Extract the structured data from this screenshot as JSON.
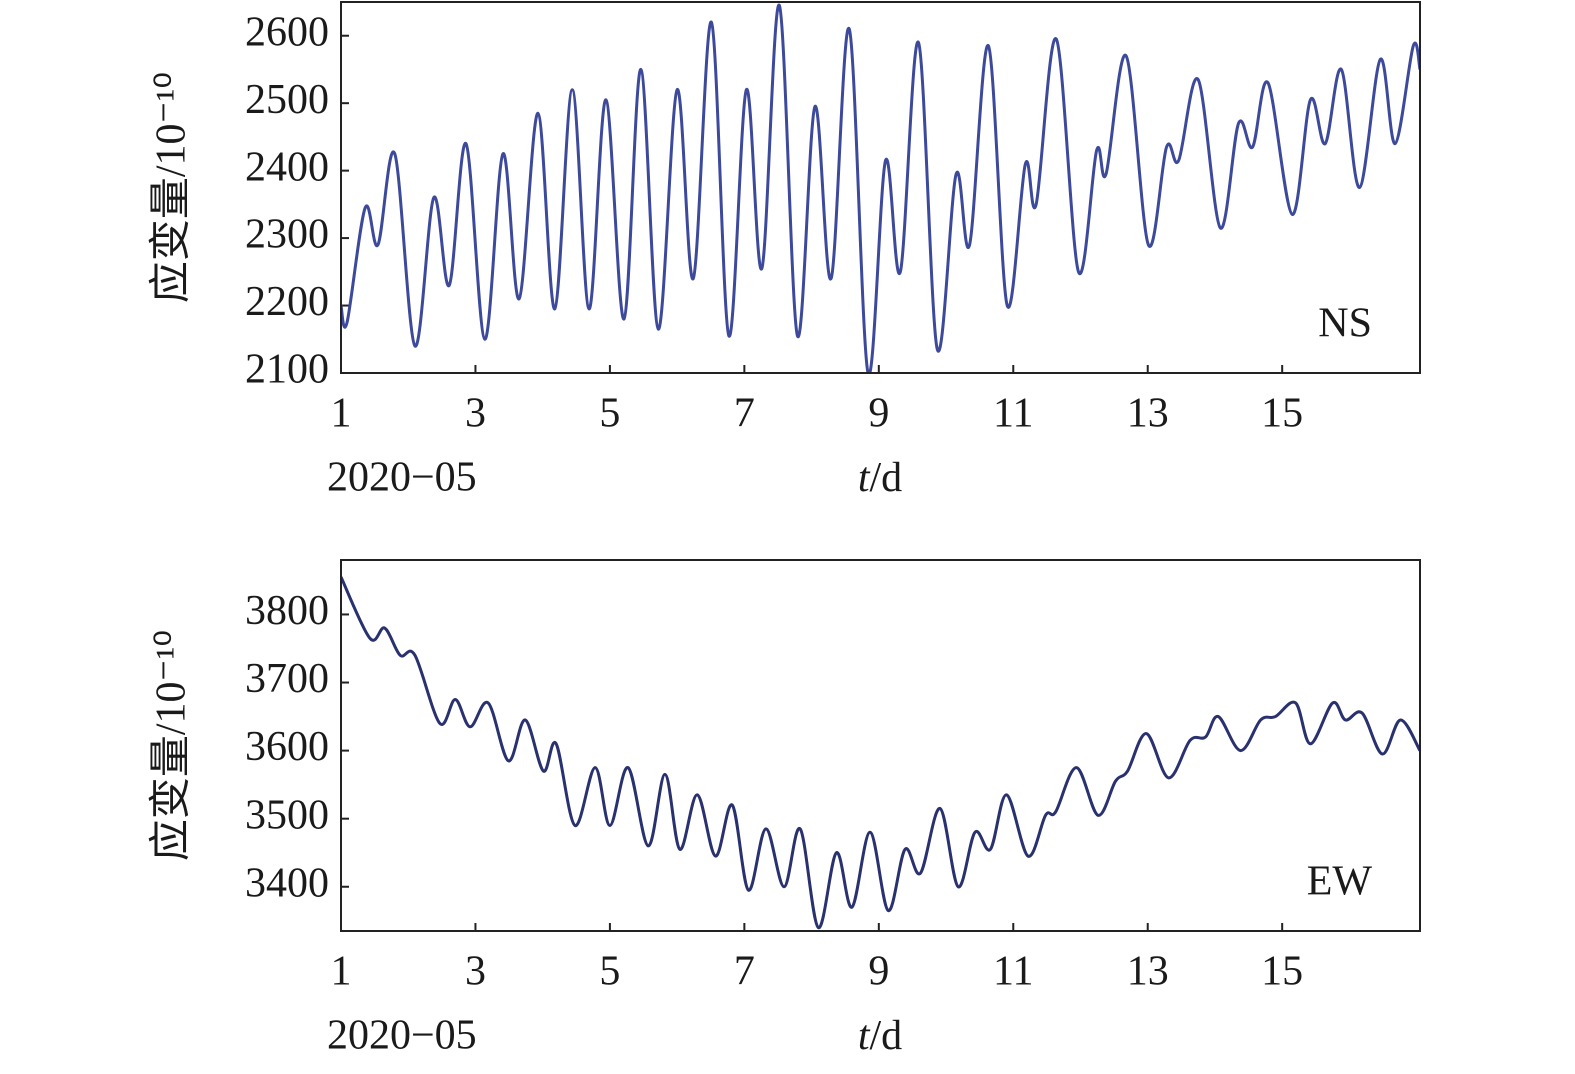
{
  "chart_data": [
    {
      "type": "line",
      "ylabel": "应变量/10⁻¹⁰",
      "xlabel": [
        "t",
        "/d"
      ],
      "date_label": "2020−05",
      "annotation": "NS",
      "xlim": [
        1,
        17.05
      ],
      "xticks": [
        1,
        3,
        5,
        7,
        9,
        11,
        13,
        15
      ],
      "ylim": [
        2100,
        2650
      ],
      "yticks": [
        2100,
        2200,
        2300,
        2400,
        2500,
        2600
      ],
      "x": [
        1.0,
        1.09,
        1.36,
        1.55,
        1.8,
        2.1,
        2.38,
        2.61,
        2.86,
        3.14,
        3.41,
        3.65,
        3.93,
        4.18,
        4.44,
        4.69,
        4.94,
        5.21,
        5.46,
        5.72,
        6.0,
        6.24,
        6.51,
        6.77,
        7.03,
        7.26,
        7.52,
        7.79,
        8.05,
        8.29,
        8.56,
        8.84,
        9.1,
        9.32,
        9.59,
        9.87,
        10.15,
        10.35,
        10.63,
        10.91,
        11.18,
        11.34,
        11.64,
        11.97,
        12.24,
        12.38,
        12.68,
        13.01,
        13.28,
        13.46,
        13.75,
        14.08,
        14.35,
        14.56,
        14.79,
        15.15,
        15.42,
        15.64,
        15.88,
        16.15,
        16.46,
        16.68,
        16.95,
        17.05
      ],
      "series": [
        {
          "color": "#3d4a9c",
          "values": [
            2200,
            2175,
            2345,
            2290,
            2425,
            2140,
            2360,
            2230,
            2440,
            2150,
            2425,
            2210,
            2485,
            2195,
            2520,
            2195,
            2505,
            2180,
            2550,
            2165,
            2520,
            2240,
            2620,
            2155,
            2520,
            2255,
            2645,
            2155,
            2495,
            2240,
            2610,
            2100,
            2415,
            2250,
            2590,
            2135,
            2395,
            2290,
            2585,
            2200,
            2410,
            2350,
            2595,
            2250,
            2430,
            2395,
            2570,
            2290,
            2435,
            2415,
            2535,
            2315,
            2470,
            2435,
            2530,
            2335,
            2505,
            2440,
            2550,
            2375,
            2565,
            2440,
            2585,
            2550
          ]
        }
      ]
    },
    {
      "type": "line",
      "ylabel": "应变量/10⁻¹⁰",
      "xlabel": [
        "t",
        "/d"
      ],
      "date_label": "2020−05",
      "annotation": "EW",
      "xlim": [
        1,
        17.05
      ],
      "xticks": [
        1,
        3,
        5,
        7,
        9,
        11,
        13,
        15
      ],
      "ylim": [
        3335,
        3880
      ],
      "yticks": [
        3400,
        3500,
        3600,
        3700,
        3800
      ],
      "x": [
        1.0,
        1.43,
        1.65,
        1.88,
        2.1,
        2.47,
        2.7,
        2.92,
        3.19,
        3.49,
        3.74,
        4.01,
        4.2,
        4.48,
        4.78,
        5.0,
        5.27,
        5.57,
        5.82,
        6.04,
        6.3,
        6.57,
        6.82,
        7.06,
        7.32,
        7.59,
        7.83,
        8.1,
        8.37,
        8.6,
        8.87,
        9.14,
        9.39,
        9.62,
        9.91,
        10.18,
        10.43,
        10.66,
        10.9,
        11.22,
        11.48,
        11.63,
        11.94,
        12.26,
        12.52,
        12.7,
        12.98,
        13.31,
        13.63,
        13.86,
        14.05,
        14.38,
        14.68,
        14.9,
        15.2,
        15.42,
        15.75,
        15.94,
        16.19,
        16.49,
        16.76,
        17.05
      ],
      "series": [
        {
          "color": "#29316f",
          "values": [
            3855,
            3765,
            3780,
            3740,
            3740,
            3640,
            3675,
            3635,
            3670,
            3585,
            3645,
            3570,
            3610,
            3490,
            3575,
            3490,
            3575,
            3460,
            3565,
            3455,
            3535,
            3445,
            3520,
            3395,
            3485,
            3400,
            3485,
            3340,
            3450,
            3370,
            3480,
            3365,
            3455,
            3420,
            3515,
            3400,
            3480,
            3455,
            3535,
            3445,
            3505,
            3510,
            3575,
            3505,
            3555,
            3570,
            3625,
            3560,
            3615,
            3620,
            3650,
            3600,
            3645,
            3650,
            3670,
            3610,
            3670,
            3645,
            3655,
            3595,
            3645,
            3600
          ]
        }
      ]
    }
  ]
}
